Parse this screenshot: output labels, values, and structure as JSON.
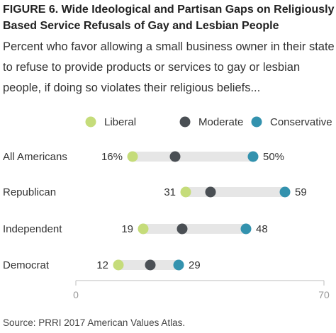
{
  "title": "FIGURE 6. Wide Ideological and Partisan Gaps on Religiously Based Service Refusals of Gay and Lesbian People",
  "subtitle": "Percent who favor allowing a small business owner in their state to refuse to provide products or services to gay or lesbian people, if doing so violates their religious beliefs...",
  "source": "Source: PRRI 2017 American Values Atlas.",
  "colors": {
    "liberal": "#c5dc7a",
    "moderate": "#4a4f54",
    "conservative": "#3392ae",
    "track": "#e6e6e6",
    "axis": "#bdbdbd"
  },
  "chart_data": {
    "type": "dot-range",
    "categories": [
      "All Americans",
      "Republican",
      "Independent",
      "Democrat"
    ],
    "series": [
      {
        "name": "Liberal",
        "key": "liberal",
        "values": [
          16,
          31,
          19,
          12
        ]
      },
      {
        "name": "Moderate",
        "key": "moderate",
        "values": [
          28,
          38,
          30,
          21
        ]
      },
      {
        "name": "Conservative",
        "key": "conservative",
        "values": [
          50,
          59,
          48,
          29
        ]
      }
    ],
    "left_labels": [
      "16%",
      "31",
      "19",
      "12"
    ],
    "right_labels": [
      "50%",
      "59",
      "48",
      "29"
    ],
    "xlim": [
      0,
      70
    ],
    "xticks": [
      "0",
      "70"
    ],
    "legend_position": "top"
  }
}
